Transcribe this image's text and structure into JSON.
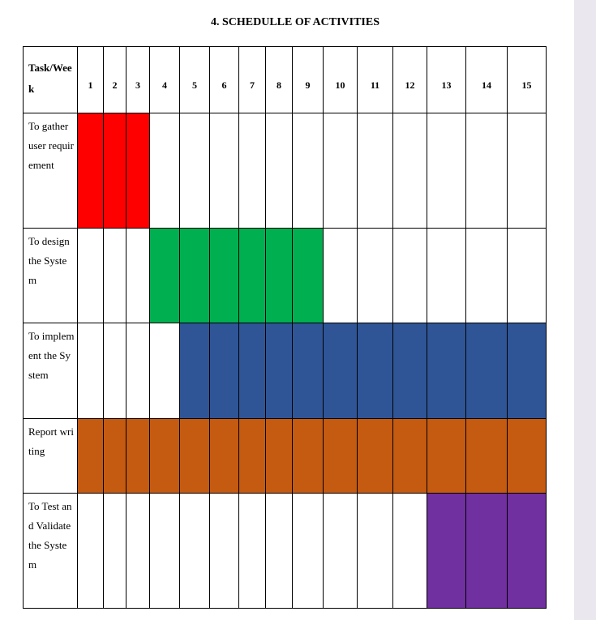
{
  "title": "4.  SCHEDULLE OF ACTIVITIES",
  "header": {
    "task_week": "Task/Week"
  },
  "weeks": [
    "1",
    "2",
    "3",
    "4",
    "5",
    "6",
    "7",
    "8",
    "9",
    "10",
    "11",
    "12",
    "13",
    "14",
    "15"
  ],
  "tasks": [
    {
      "label": "To gather user requirement",
      "start_week": 1,
      "end_week": 3,
      "color": "#ff0000"
    },
    {
      "label": "To design the System",
      "start_week": 4,
      "end_week": 9,
      "color": "#00b050"
    },
    {
      "label": "To implement the System",
      "start_week": 5,
      "end_week": 15,
      "color": "#2f5597"
    },
    {
      "label": "Report writing",
      "start_week": 1,
      "end_week": 15,
      "color": "#c55a11"
    },
    {
      "label": "To Test and Validate the System",
      "start_week": 13,
      "end_week": 15,
      "color": "#7030a0"
    }
  ]
}
